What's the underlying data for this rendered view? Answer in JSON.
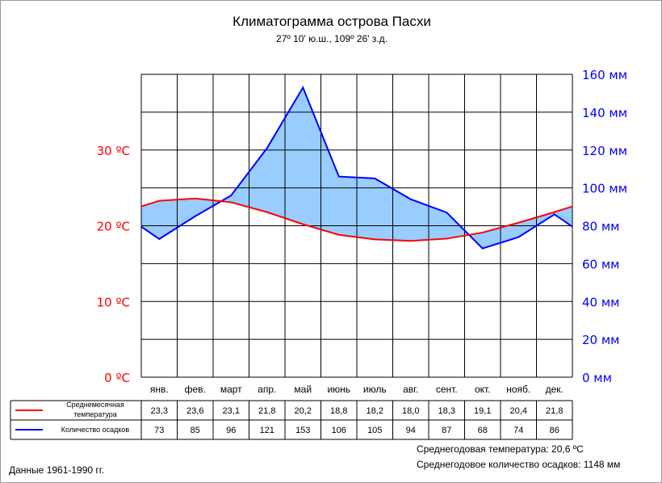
{
  "chart_data": {
    "type": "area",
    "title": "Климатограмма острова Пасхи",
    "subtitle": "27º 10' ю.ш., 109º 26' з.д.",
    "categories": [
      "янв.",
      "фев.",
      "март",
      "апр.",
      "май",
      "июнь",
      "июль",
      "авг.",
      "сент.",
      "окт.",
      "нояб.",
      "дек."
    ],
    "left_axis": {
      "unit": "°C",
      "ticks": [
        "0 ºC",
        "10 ºC",
        "20 ºC",
        "30 ºC"
      ],
      "tick_values": [
        0,
        10,
        20,
        30
      ],
      "range": [
        0,
        40
      ]
    },
    "right_axis": {
      "unit": "мм",
      "ticks": [
        "0 мм",
        "20 мм",
        "40 мм",
        "60 мм",
        "80 мм",
        "100 мм",
        "120 мм",
        "140 мм",
        "160 мм"
      ],
      "tick_values": [
        0,
        20,
        40,
        60,
        80,
        100,
        120,
        140,
        160
      ],
      "range": [
        0,
        160
      ]
    },
    "series": [
      {
        "name": "Среднемесячная температура",
        "axis": "left",
        "color": "#ff0000",
        "values": [
          23.3,
          23.6,
          23.1,
          21.8,
          20.2,
          18.8,
          18.2,
          18.0,
          18.3,
          19.1,
          20.4,
          21.8
        ],
        "labels": [
          "23,3",
          "23,6",
          "23,1",
          "21,8",
          "20,2",
          "18,8",
          "18,2",
          "18,0",
          "18,3",
          "19,1",
          "20,4",
          "21,8"
        ]
      },
      {
        "name": "Количество осадков",
        "axis": "right",
        "color": "#0000ff",
        "fill": "#99ccff",
        "values": [
          73,
          85,
          96,
          121,
          153,
          106,
          105,
          94,
          87,
          68,
          74,
          86
        ],
        "labels": [
          "73",
          "85",
          "96",
          "121",
          "153",
          "106",
          "105",
          "94",
          "87",
          "68",
          "74",
          "86"
        ]
      }
    ],
    "grid": true,
    "legend": "bottom-table"
  },
  "footer": {
    "annual_temperature": "Среднегодовая температура: 20,6 ºC",
    "annual_precipitation": "Среднегодовое количество осадков: 1148 мм",
    "period": "Данные 1961-1990 гг."
  }
}
